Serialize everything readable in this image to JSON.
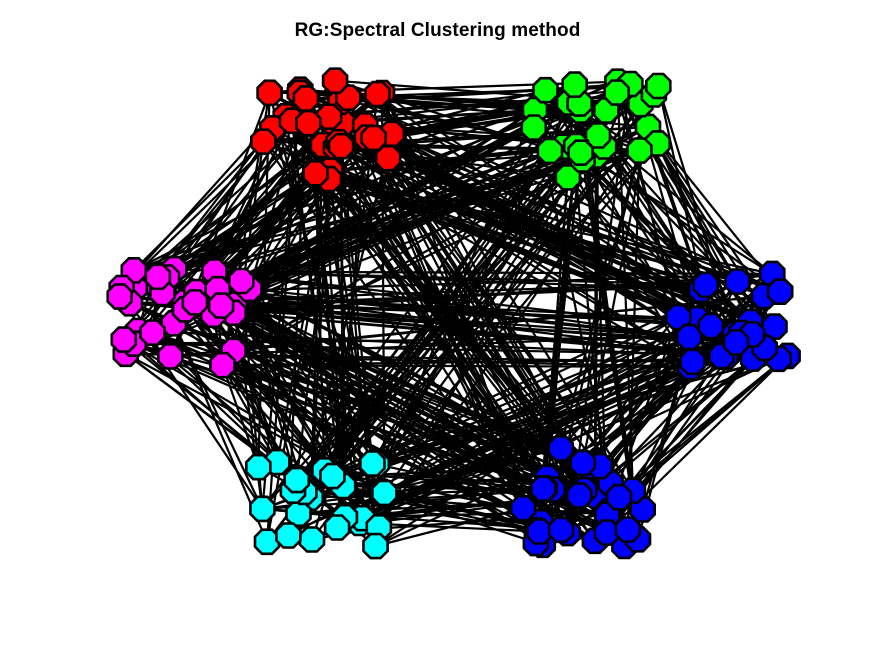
{
  "figure": {
    "title": "RG:Spectral Clustering method"
  },
  "colors": {
    "edge": "#000000",
    "node_outline": "#000000",
    "background": "#ffffff"
  },
  "clusters": [
    {
      "name": "red",
      "color": "#ff0000",
      "node_count": 32
    },
    {
      "name": "green",
      "color": "#00ff00",
      "node_count": 26
    },
    {
      "name": "blue",
      "color": "#0000ff",
      "node_count": 24
    },
    {
      "name": "blue-2",
      "color": "#0000ff",
      "node_count": 30
    },
    {
      "name": "cyan",
      "color": "#00ffff",
      "node_count": 24
    },
    {
      "name": "magenta",
      "color": "#ff00ff",
      "node_count": 32
    }
  ]
}
